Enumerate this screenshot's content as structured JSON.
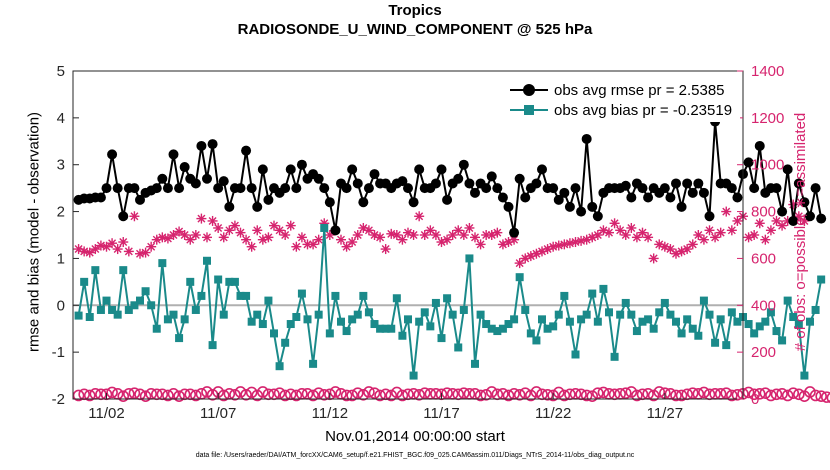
{
  "title": "Tropics",
  "subtitle": "RADIOSONDE_U_WIND_COMPONENT @ 525 hPa",
  "footer": "data file: /Users/raeder/DAI/ATM_forcXX/CAM6_setup/f.e21.FHIST_BGC.f09_025.CAM6assim.011/Diags_NTrS_2014-11/obs_diag_output.nc",
  "colors": {
    "rmse": "#000000",
    "bias": "#1a8a8a",
    "count": "#d6246e",
    "zero_line": "#b0b0b0"
  },
  "chart_data": {
    "type": "line",
    "xlabel": "Nov.01,2014 00:00:00 start",
    "ylabel": "rmse and bias (model - observation)",
    "ylabel_right": "# of obs: o=possible; ∗=assimilated",
    "ylim": [
      -2,
      5
    ],
    "ylim_right": [
      0,
      1400
    ],
    "xlim": [
      0.5,
      30.5
    ],
    "x_ticks": [
      {
        "x": 2,
        "label": "11/02"
      },
      {
        "x": 7,
        "label": "11/07"
      },
      {
        "x": 12,
        "label": "11/12"
      },
      {
        "x": 17,
        "label": "11/17"
      },
      {
        "x": 22,
        "label": "11/22"
      },
      {
        "x": 27,
        "label": "11/27"
      }
    ],
    "y_ticks": [
      -2,
      -1,
      0,
      1,
      2,
      3,
      4,
      5
    ],
    "y_ticks_right": [
      0,
      200,
      400,
      600,
      800,
      1000,
      1200,
      1400
    ],
    "legend_position": "top-right",
    "x_start": 0.75,
    "x_step": 0.25,
    "series": [
      {
        "name": "obs avg rmse pr = 2.5385",
        "axis": "left",
        "marker": "circle",
        "values": [
          2.25,
          2.28,
          2.28,
          2.3,
          2.3,
          2.5,
          3.22,
          2.5,
          1.9,
          2.5,
          2.5,
          2.25,
          2.4,
          2.45,
          2.5,
          2.7,
          2.5,
          3.22,
          2.5,
          2.95,
          2.7,
          2.6,
          3.4,
          2.7,
          3.44,
          2.5,
          2.65,
          2.1,
          2.5,
          2.5,
          3.3,
          2.5,
          2.1,
          2.9,
          2.25,
          2.5,
          2.4,
          2.5,
          2.9,
          2.5,
          3.0,
          2.7,
          2.8,
          2.7,
          2.5,
          2.2,
          1.6,
          2.6,
          2.5,
          2.9,
          2.6,
          2.2,
          2.5,
          2.8,
          2.6,
          2.6,
          2.5,
          2.6,
          2.65,
          2.5,
          2.2,
          2.9,
          2.5,
          2.5,
          2.6,
          2.9,
          2.25,
          2.6,
          2.7,
          3.0,
          2.6,
          2.4,
          2.6,
          2.5,
          2.75,
          2.5,
          2.3,
          2.1,
          1.55,
          2.7,
          2.3,
          2.5,
          2.6,
          2.9,
          2.5,
          2.5,
          2.25,
          2.4,
          2.1,
          2.5,
          2.0,
          3.55,
          2.1,
          1.9,
          2.4,
          2.5,
          2.5,
          2.5,
          2.55,
          2.3,
          2.6,
          2.5,
          2.3,
          2.5,
          2.4,
          2.5,
          2.3,
          2.6,
          2.1,
          2.6,
          2.4,
          2.6,
          2.4,
          1.9,
          3.92,
          2.6,
          2.6,
          2.5,
          2.3,
          2.8,
          3.05,
          2.5,
          3.4,
          2.4,
          2.5,
          2.5,
          2.0,
          2.9,
          1.8,
          2.6,
          2.2,
          1.9,
          2.5,
          1.85
        ]
      },
      {
        "name": "obs avg bias pr = -0.23519",
        "axis": "left",
        "marker": "square",
        "values": [
          -0.22,
          0.5,
          -0.25,
          0.75,
          -0.1,
          0.1,
          -0.1,
          -0.2,
          0.75,
          -0.1,
          0.0,
          0.1,
          0.3,
          0.0,
          -0.5,
          0.9,
          -0.3,
          -0.2,
          -0.7,
          -0.3,
          0.5,
          -0.1,
          0.2,
          0.95,
          -0.85,
          0.55,
          -0.2,
          0.5,
          0.5,
          0.2,
          0.2,
          -0.35,
          -0.2,
          -0.4,
          0.1,
          -0.6,
          -1.3,
          -0.8,
          -0.4,
          -0.25,
          0.25,
          -0.3,
          -1.25,
          -0.2,
          1.65,
          -0.6,
          0.2,
          -0.35,
          -0.55,
          -0.3,
          -0.2,
          0.2,
          -0.15,
          -0.4,
          -0.5,
          -0.5,
          -0.5,
          0.15,
          -0.65,
          -0.3,
          -1.5,
          -0.35,
          -0.15,
          -0.45,
          0.05,
          -0.7,
          0.15,
          -0.2,
          -0.9,
          -0.1,
          1.0,
          -1.25,
          -0.2,
          -0.4,
          -0.5,
          -0.55,
          -0.5,
          -0.4,
          -0.3,
          0.6,
          -0.1,
          -0.6,
          -0.75,
          -0.3,
          -0.5,
          -0.45,
          -0.2,
          0.2,
          -0.35,
          -1.05,
          -0.3,
          -0.2,
          0.25,
          -0.35,
          0.35,
          -0.15,
          -1.1,
          -0.2,
          0.05,
          -0.2,
          -0.55,
          -0.35,
          -0.3,
          -0.5,
          -0.15,
          0.05,
          -0.2,
          -0.35,
          -0.6,
          -0.3,
          -0.5,
          -0.65,
          0.1,
          -0.2,
          -0.8,
          -0.3,
          -0.85,
          -0.15,
          -0.35,
          -0.25,
          -0.4,
          -0.6,
          -0.45,
          -0.35,
          -0.15,
          -0.55,
          -0.75,
          0.1,
          -0.25,
          -0.4,
          -1.5,
          -0.35,
          -0.1,
          0.55
        ]
      },
      {
        "name": "possible",
        "axis": "right",
        "marker": "circle",
        "values": [
          15,
          20,
          15,
          22,
          20,
          20,
          28,
          22,
          12,
          22,
          25,
          20,
          12,
          22,
          20,
          20,
          15,
          22,
          12,
          20,
          20,
          15,
          22,
          30,
          18,
          30,
          15,
          22,
          18,
          30,
          18,
          28,
          15,
          30,
          20,
          20,
          25,
          15,
          20,
          15,
          22,
          22,
          15,
          25,
          18,
          20,
          30,
          22,
          15,
          15,
          25,
          18,
          30,
          25,
          15,
          20,
          15,
          28,
          15,
          20,
          22,
          18,
          25,
          22,
          22,
          20,
          25,
          22,
          20,
          25,
          22,
          22,
          15,
          18,
          30,
          20,
          22,
          15,
          22,
          18,
          25,
          15,
          30,
          20,
          18,
          15,
          28,
          15,
          20,
          22,
          20,
          15,
          12,
          25,
          28,
          22,
          20,
          22,
          25,
          30,
          15,
          20,
          22,
          15,
          30,
          25,
          22,
          15,
          15,
          20,
          25,
          22,
          28,
          20,
          22,
          22,
          25,
          15,
          18,
          22,
          28,
          20,
          22,
          25,
          15,
          20,
          22,
          15,
          25,
          20,
          12,
          30,
          15,
          12,
          8,
          5
        ]
      },
      {
        "name": "assimilated",
        "axis": "right",
        "marker": "asterisk",
        "values": [
          640,
          630,
          625,
          640,
          655,
          650,
          665,
          640,
          670,
          630,
          780,
          620,
          625,
          650,
          680,
          690,
          685,
          700,
          715,
          700,
          680,
          700,
          770,
          690,
          760,
          730,
          690,
          720,
          740,
          710,
          680,
          650,
          720,
          680,
          690,
          740,
          720,
          700,
          740,
          650,
          690,
          660,
          660,
          680,
          750,
          700,
          720,
          680,
          650,
          670,
          700,
          730,
          720,
          700,
          690,
          640,
          705,
          700,
          680,
          710,
          700,
          780,
          700,
          720,
          700,
          670,
          680,
          700,
          720,
          700,
          730,
          690,
          660,
          700,
          700,
          710,
          660,
          670,
          680,
          580,
          600,
          610,
          620,
          630,
          640,
          650,
          655,
          660,
          665,
          670,
          675,
          680,
          690,
          700,
          720,
          710,
          750,
          720,
          700,
          730,
          690,
          710,
          690,
          600,
          660,
          650,
          640,
          620,
          630,
          640,
          660,
          700,
          680,
          720,
          690,
          710,
          800,
          720,
          760,
          780,
          690,
          700,
          750,
          680,
          720,
          760,
          740,
          760,
          830,
          780,
          760
        ]
      }
    ]
  }
}
